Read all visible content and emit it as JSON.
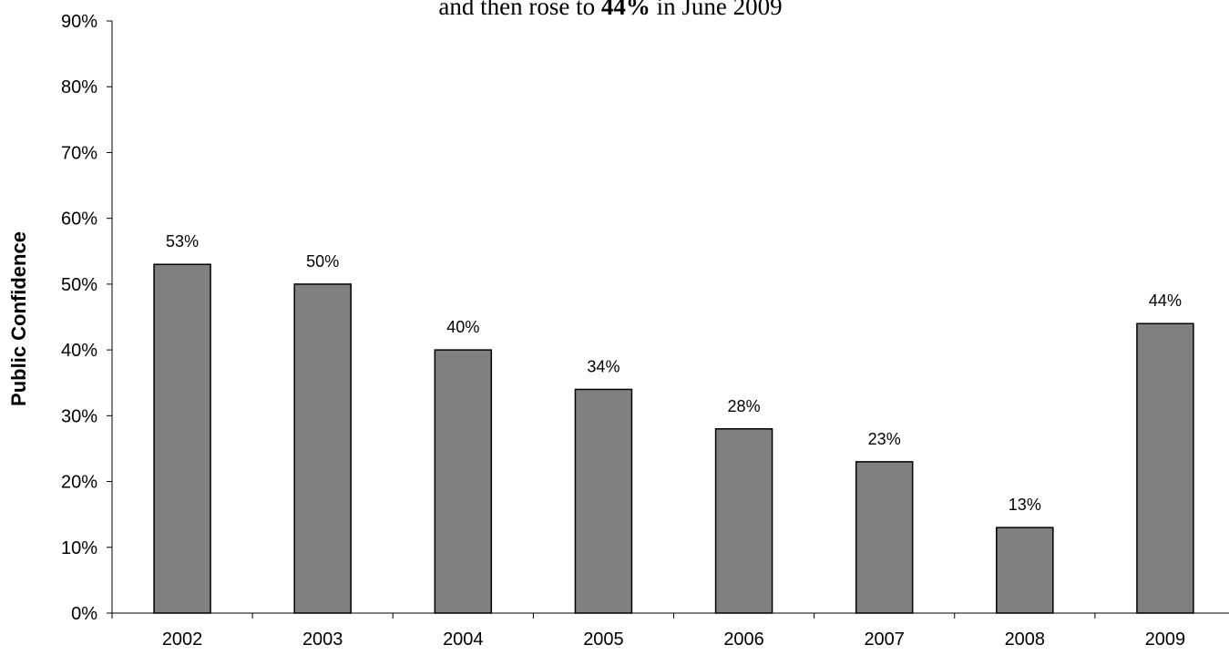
{
  "chart_data": {
    "type": "bar",
    "title": {
      "part1": "and then rose to ",
      "bold": "44%",
      "part2": " in June 2009"
    },
    "xlabel": "",
    "ylabel": "Public Confidence",
    "categories": [
      "2002",
      "2003",
      "2004",
      "2005",
      "2006",
      "2007",
      "2008",
      "2009"
    ],
    "values": [
      53,
      50,
      40,
      34,
      28,
      23,
      13,
      44
    ],
    "data_labels": [
      "53%",
      "50%",
      "40%",
      "34%",
      "28%",
      "23%",
      "13%",
      "44%"
    ],
    "ylim": [
      0,
      90
    ],
    "yticks": [
      0,
      10,
      20,
      30,
      40,
      50,
      60,
      70,
      80,
      90
    ],
    "ytick_labels": [
      "0%",
      "10%",
      "20%",
      "30%",
      "40%",
      "50%",
      "60%",
      "70%",
      "80%",
      "90%"
    ],
    "grid": false,
    "legend": "none",
    "bar_color": "#808080",
    "bar_edge_color": "#000000"
  }
}
